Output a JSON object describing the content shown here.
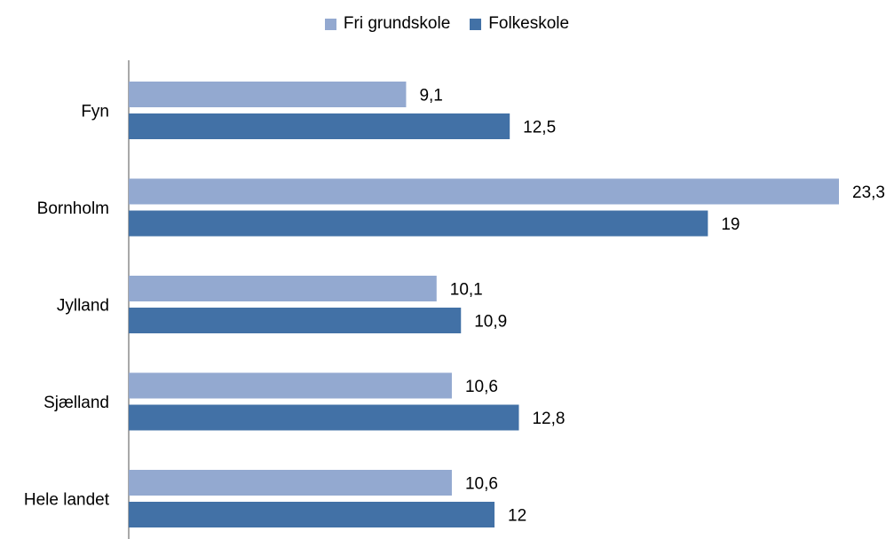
{
  "chart_data": {
    "type": "bar",
    "orientation": "horizontal",
    "categories": [
      "Fyn",
      "Bornholm",
      "Jylland",
      "Sjælland",
      "Hele landet"
    ],
    "series": [
      {
        "name": "Fri grundskole",
        "values": [
          9.1,
          23.3,
          10.1,
          10.6,
          10.6
        ],
        "labels": [
          "9,1",
          "23,3",
          "10,1",
          "10,6",
          "10,6"
        ],
        "color": "#93a9d0"
      },
      {
        "name": "Folkeskole",
        "values": [
          12.5,
          19,
          10.9,
          12.8,
          12
        ],
        "labels": [
          "12,5",
          "19",
          "10,9",
          "12,8",
          "12"
        ],
        "color": "#4271a6"
      }
    ],
    "xlim": [
      0,
      23.3
    ],
    "legend_position": "top-center",
    "grid": false
  }
}
